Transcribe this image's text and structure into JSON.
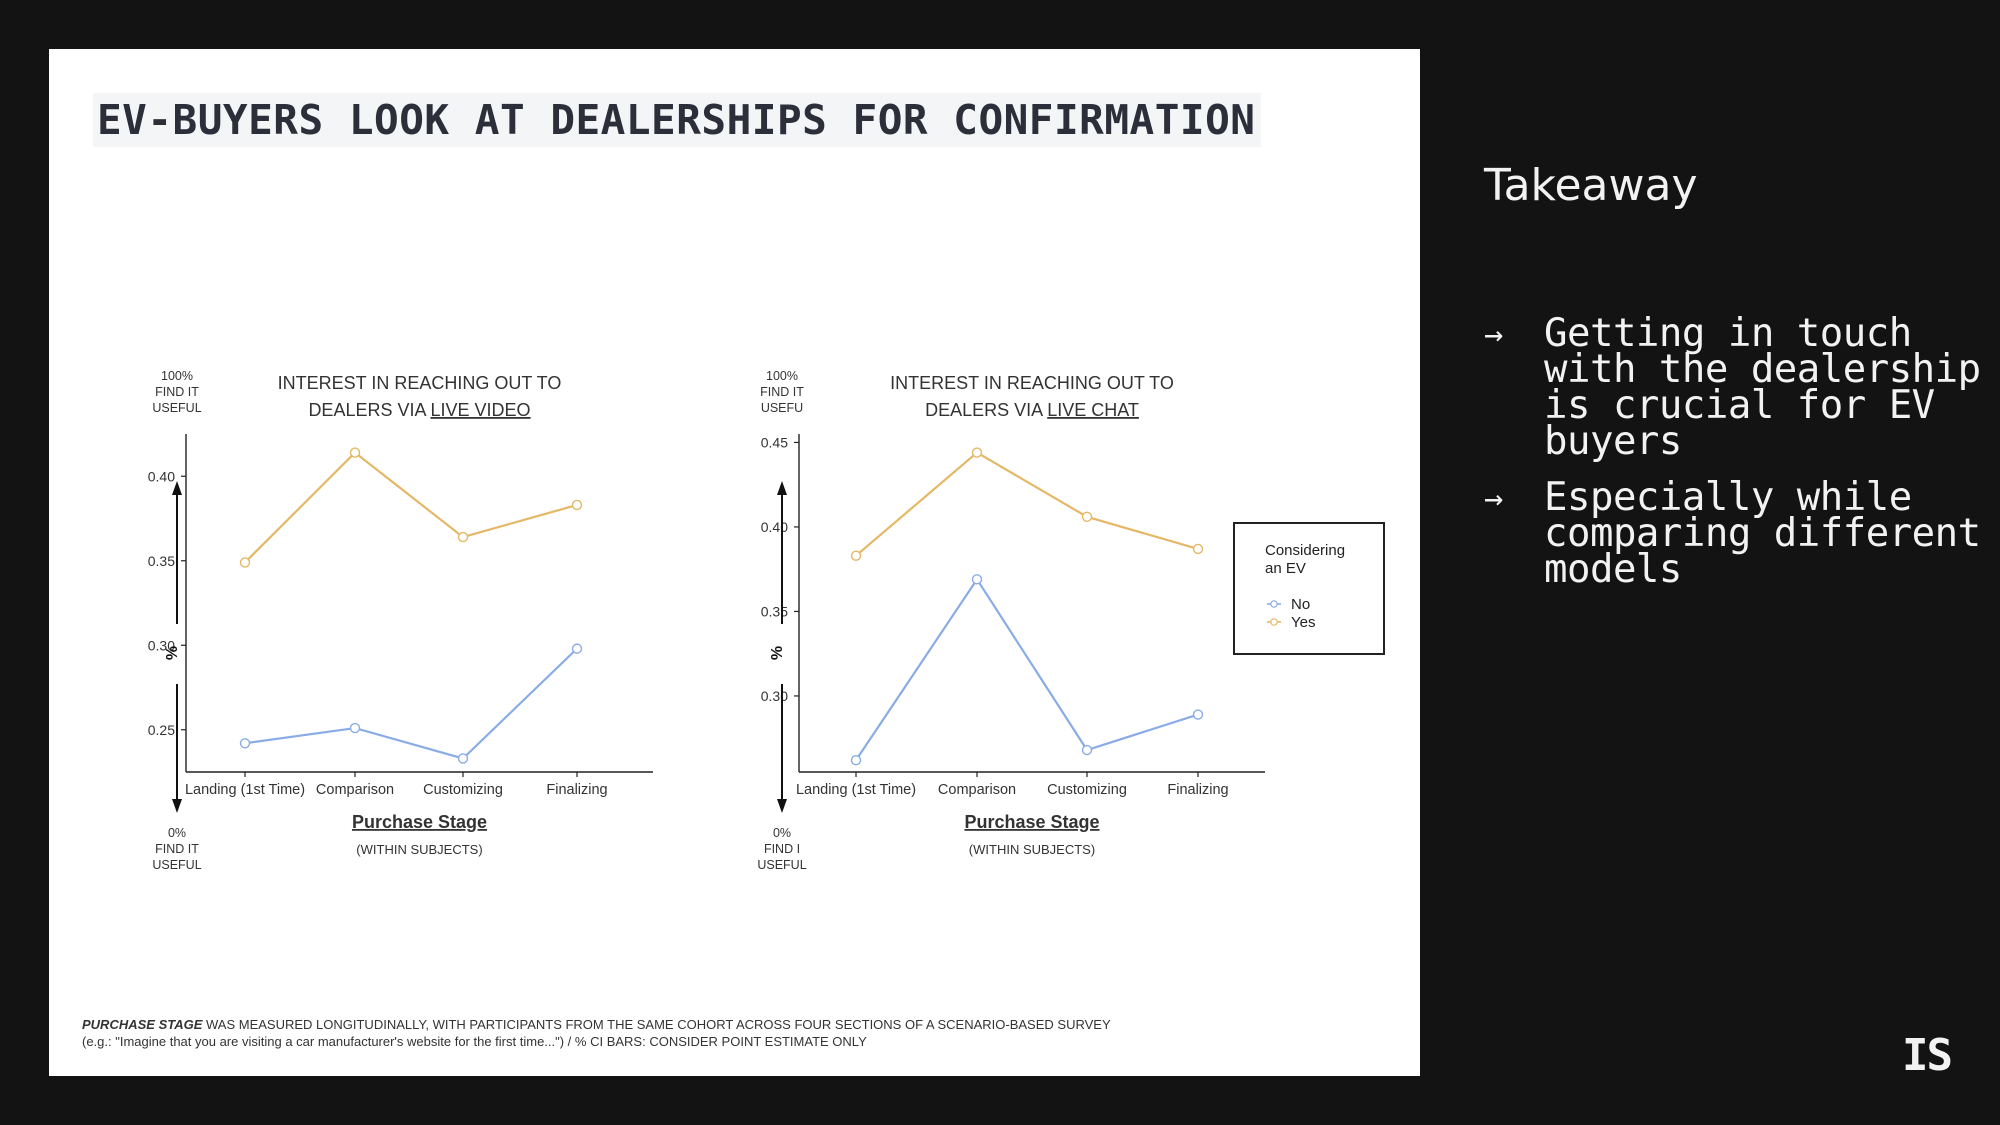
{
  "slide": {
    "title": "EV-BUYERS LOOK AT DEALERSHIPS FOR CONFIRMATION",
    "footnote_em": "PURCHASE STAGE",
    "footnote_rest": " WAS MEASURED LONGITUDINALLY, WITH PARTICIPANTS FROM THE SAME COHORT ACROSS FOUR SECTIONS OF A SCENARIO-BASED SURVEY",
    "footnote_line2": "(e.g.: \"Imagine that you are visiting a car manufacturer's website for the first time...\") / % CI BARS: CONSIDER POINT ESTIMATE ONLY"
  },
  "sidebar": {
    "title": "Takeaway",
    "bullets": [
      "Getting in touch with the dealership is crucial for EV buyers",
      "Especially while comparing different models"
    ],
    "arrow": "→",
    "logo": "IS"
  },
  "colors": {
    "no": "#8aace6",
    "yes": "#e4b866",
    "axis": "#222222"
  },
  "chart_data": [
    {
      "type": "line",
      "title_line1": "INTEREST IN REACHING OUT TO",
      "title_line2_prefix": "DEALERS VIA ",
      "title_line2_link": "LIVE VIDEO",
      "xlabel": "Purchase Stage",
      "xsublabel": "(WITHIN SUBJECTS)",
      "ylabel": "%",
      "y_top_note": [
        "100%",
        "FIND IT",
        "USEFUL"
      ],
      "y_bottom_note": [
        "0%",
        "FIND IT",
        "USEFUL"
      ],
      "categories": [
        "Landing (1st Time)",
        "Comparison",
        "Customizing",
        "Finalizing"
      ],
      "yticks": [
        0.25,
        0.3,
        0.35,
        0.4
      ],
      "ytick_labels": [
        "0.25",
        "0.30",
        "0.35",
        "0.40"
      ],
      "ylim": [
        0.225,
        0.425
      ],
      "series": [
        {
          "name": "No",
          "values": [
            0.242,
            0.251,
            0.233,
            0.298
          ]
        },
        {
          "name": "Yes",
          "values": [
            0.349,
            0.414,
            0.364,
            0.383
          ]
        }
      ]
    },
    {
      "type": "line",
      "title_line1": "INTEREST IN REACHING OUT TO",
      "title_line2_prefix": "DEALERS VIA ",
      "title_line2_link": "LIVE CHAT",
      "xlabel": "Purchase Stage",
      "xsublabel": "(WITHIN SUBJECTS)",
      "ylabel": "%",
      "y_top_note": [
        "100%",
        "FIND IT",
        "USEFU"
      ],
      "y_bottom_note": [
        "0%",
        "FIND I",
        "USEFUL"
      ],
      "categories": [
        "Landing (1st Time)",
        "Comparison",
        "Customizing",
        "Finalizing"
      ],
      "yticks": [
        0.3,
        0.35,
        0.4,
        0.45
      ],
      "ytick_labels": [
        "0.30",
        "0.35",
        "0.40",
        "0.45"
      ],
      "ylim": [
        0.255,
        0.455
      ],
      "legend": {
        "title_line1": "Considering",
        "title_line2": "an EV",
        "placement": "right"
      },
      "series": [
        {
          "name": "No",
          "values": [
            0.262,
            0.369,
            0.268,
            0.289
          ]
        },
        {
          "name": "Yes",
          "values": [
            0.383,
            0.444,
            0.406,
            0.387
          ]
        }
      ]
    }
  ]
}
